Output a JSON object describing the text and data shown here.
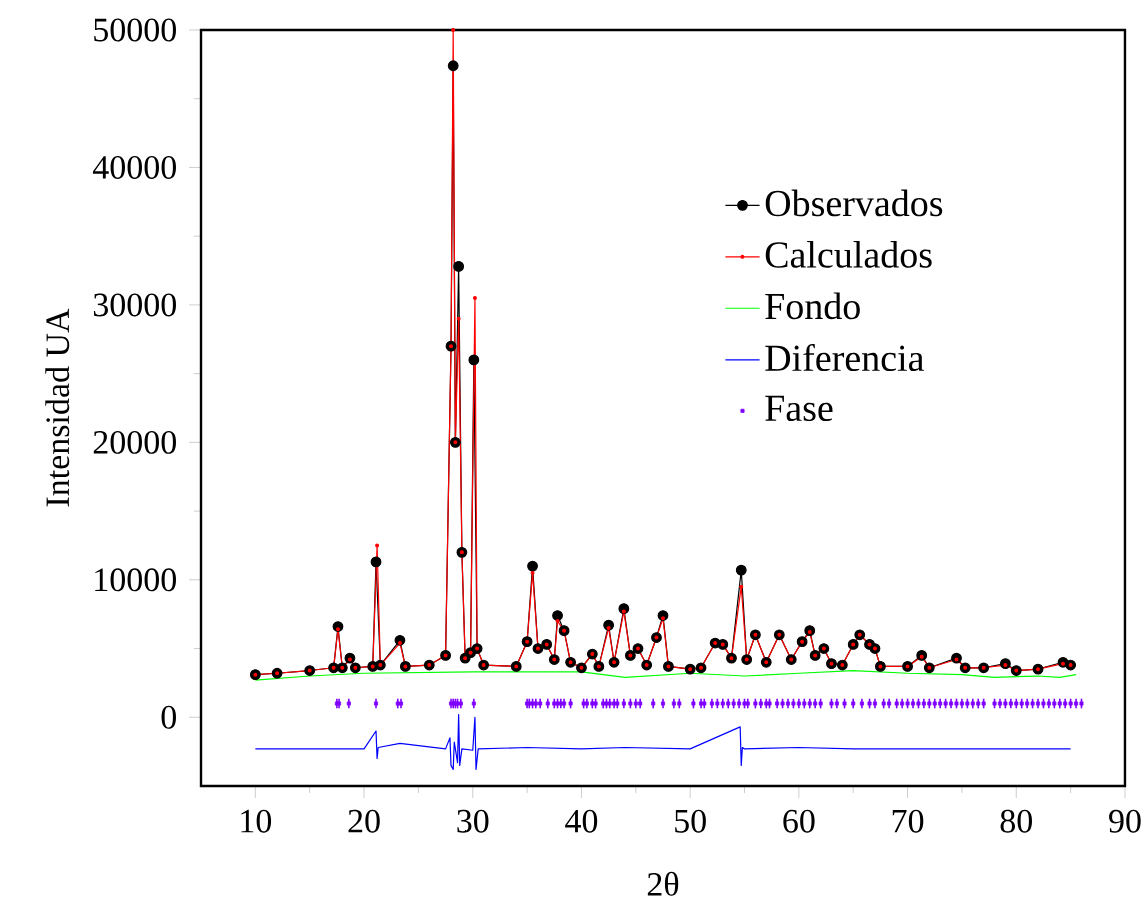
{
  "chart_data": {
    "type": "line",
    "xlabel": "2θ",
    "ylabel": "Intensidad UA",
    "xlim": [
      5,
      90
    ],
    "ylim": [
      -5000,
      50000
    ],
    "xticks": [
      10,
      20,
      30,
      40,
      50,
      60,
      70,
      80,
      90
    ],
    "yticks": [
      0,
      10000,
      20000,
      30000,
      40000,
      50000
    ],
    "legend": "top right",
    "series": [
      {
        "name": "Observados",
        "color": "#000000",
        "marker": "circle",
        "x": [
          10,
          12,
          15,
          17.2,
          17.6,
          18.0,
          18.7,
          19.2,
          20.8,
          21.1,
          21.5,
          23.3,
          23.8,
          26,
          27.5,
          28.0,
          28.2,
          28.4,
          28.7,
          29.0,
          29.3,
          29.8,
          30.1,
          30.4,
          31,
          34,
          35,
          35.5,
          36.0,
          36.8,
          37.5,
          37.8,
          38.4,
          39,
          40,
          41,
          41.6,
          42.5,
          43,
          43.9,
          44.5,
          45.2,
          46,
          46.9,
          47.5,
          48,
          50,
          51,
          52.3,
          53,
          53.8,
          54.7,
          55.2,
          56,
          57,
          58.2,
          59.3,
          60.3,
          61,
          61.5,
          62.3,
          63,
          64,
          65,
          65.6,
          66.5,
          67,
          67.5,
          70,
          71.3,
          72,
          74.5,
          75.3,
          77,
          79,
          80,
          82,
          84.3,
          85
        ],
        "values": [
          3100,
          3200,
          3400,
          3600,
          6600,
          3600,
          4300,
          3600,
          3700,
          11300,
          3800,
          5600,
          3700,
          3800,
          4500,
          27000,
          47400,
          20000,
          32800,
          12000,
          4300,
          4700,
          26000,
          5000,
          3800,
          3700,
          5500,
          11000,
          5000,
          5300,
          4200,
          7400,
          6300,
          4000,
          3600,
          4600,
          3700,
          6700,
          4000,
          7900,
          4500,
          5000,
          3800,
          5800,
          7400,
          3700,
          3500,
          3600,
          5400,
          5300,
          4300,
          10700,
          4200,
          6000,
          4000,
          6000,
          4200,
          5500,
          6300,
          4500,
          5000,
          3900,
          3800,
          5300,
          6000,
          5300,
          5000,
          3700,
          3700,
          4500,
          3600,
          4300,
          3600,
          3600,
          3900,
          3400,
          3500,
          4000,
          3800
        ]
      },
      {
        "name": "Calculados",
        "color": "#ff0000",
        "marker": "dot",
        "x": [
          10,
          12,
          15,
          17.2,
          17.6,
          18.0,
          18.7,
          19.2,
          20.8,
          21.2,
          21.5,
          23.3,
          23.8,
          26,
          27.5,
          28.0,
          28.2,
          28.4,
          28.7,
          29.0,
          29.3,
          29.8,
          30.2,
          30.4,
          31,
          34,
          35,
          35.5,
          36.0,
          36.8,
          37.5,
          37.8,
          38.4,
          39,
          40,
          41,
          41.6,
          42.5,
          43,
          43.9,
          44.5,
          45.2,
          46,
          46.9,
          47.5,
          48,
          50,
          51,
          52.3,
          53,
          53.8,
          54.7,
          55.2,
          56,
          57,
          58.2,
          59.3,
          60.3,
          61,
          61.5,
          62.3,
          63,
          64,
          65,
          65.6,
          66.5,
          67,
          67.5,
          70,
          71.3,
          72,
          74.5,
          75.3,
          77,
          79,
          80,
          82,
          84.3,
          85
        ],
        "values": [
          3100,
          3200,
          3400,
          3600,
          6400,
          3600,
          4200,
          3600,
          3700,
          12500,
          3800,
          5400,
          3700,
          3800,
          4500,
          27000,
          50000,
          20000,
          29000,
          12000,
          4300,
          4700,
          30500,
          5000,
          3800,
          3700,
          5500,
          10500,
          5000,
          5300,
          4200,
          7000,
          6300,
          4000,
          3600,
          4600,
          3700,
          6500,
          4000,
          7700,
          4500,
          5000,
          3800,
          5800,
          7200,
          3700,
          3500,
          3600,
          5400,
          5300,
          4300,
          9500,
          4200,
          6000,
          4000,
          6000,
          4200,
          5500,
          6200,
          4500,
          5000,
          3900,
          3800,
          5300,
          6000,
          5300,
          5000,
          3700,
          3700,
          4400,
          3600,
          4200,
          3600,
          3600,
          3800,
          3400,
          3500,
          3900,
          3800
        ]
      },
      {
        "name": "Fondo",
        "color": "#00ff00",
        "x": [
          10,
          15,
          20,
          30,
          40,
          44,
          50,
          55,
          60,
          65,
          70,
          75,
          78,
          82,
          84,
          85.5
        ],
        "values": [
          2700,
          3000,
          3200,
          3300,
          3300,
          2900,
          3200,
          3000,
          3200,
          3400,
          3200,
          3100,
          2900,
          3000,
          2900,
          3100
        ]
      },
      {
        "name": "Diferencia",
        "color": "#0000ff",
        "x": [
          10,
          15,
          20,
          21.1,
          21.2,
          21.3,
          23.3,
          27.5,
          27.9,
          28.0,
          28.2,
          28.3,
          28.6,
          28.7,
          28.8,
          29.0,
          30.0,
          30.2,
          30.3,
          30.5,
          35,
          40,
          44,
          50,
          54.6,
          54.7,
          54.8,
          55,
          60,
          65,
          70,
          75,
          80,
          85
        ],
        "values": [
          -2300,
          -2300,
          -2300,
          -1000,
          -3000,
          -2200,
          -1900,
          -2300,
          -1500,
          -3500,
          -3800,
          -1800,
          -3300,
          200,
          -3500,
          -2300,
          -2400,
          0,
          -3800,
          -2300,
          -2200,
          -2300,
          -2200,
          -2300,
          -700,
          -3500,
          -2200,
          -2300,
          -2200,
          -2300,
          -2300,
          -2300,
          -2300,
          -2300
        ]
      },
      {
        "name": "Fase",
        "color": "#8000ff",
        "type": "scatter",
        "marker": "square",
        "errors": [
          350,
          350,
          350,
          350,
          350,
          350,
          350,
          350,
          350,
          350,
          350,
          350,
          350,
          350,
          350,
          350,
          350,
          350,
          350,
          350,
          350,
          350,
          350,
          350,
          350,
          350,
          350,
          350,
          350,
          350,
          350,
          350,
          350,
          350,
          350,
          350,
          350,
          350,
          350,
          350,
          350,
          350,
          350,
          350,
          350,
          350,
          350,
          350,
          350,
          350,
          350,
          350,
          350,
          350,
          350,
          350,
          350,
          350,
          350,
          350,
          350,
          350,
          350,
          350,
          350,
          350,
          350,
          350,
          350,
          350,
          350,
          350,
          350,
          350,
          350,
          350,
          350,
          350,
          350,
          350,
          350,
          350,
          350,
          350,
          350,
          350,
          350,
          350,
          350,
          350,
          350,
          350,
          350,
          350,
          350,
          350,
          350,
          350,
          350,
          350,
          350,
          350,
          350,
          350,
          350,
          350,
          350
        ],
        "x": [
          17.5,
          17.7,
          18.6,
          21.1,
          23.1,
          23.4,
          28.0,
          28.2,
          28.4,
          28.6,
          28.9,
          30.1,
          35.0,
          35.2,
          35.5,
          35.8,
          36.2,
          36.9,
          37.5,
          37.8,
          38.1,
          38.4,
          39.0,
          40.2,
          40.5,
          41.0,
          41.3,
          42.0,
          42.3,
          42.6,
          43.0,
          43.3,
          43.9,
          44.5,
          45.0,
          45.4,
          46.6,
          47.5,
          48.5,
          49.0,
          50.3,
          51.0,
          51.3,
          52.0,
          52.5,
          53.0,
          53.5,
          54.0,
          54.5,
          55.0,
          55.3,
          56.0,
          56.5,
          57.0,
          57.3,
          58.0,
          58.5,
          59.0,
          59.5,
          60.0,
          60.5,
          61.0,
          61.5,
          62.0,
          63.0,
          63.5,
          64.2,
          65.0,
          65.8,
          66.5,
          67.0,
          67.8,
          68.3,
          69.0,
          69.5,
          70.0,
          70.5,
          71.0,
          71.5,
          72.0,
          72.5,
          73.0,
          73.5,
          74.0,
          74.5,
          75.0,
          75.5,
          76.0,
          76.5,
          77.0,
          78.0,
          78.5,
          79.0,
          79.5,
          80.0,
          80.5,
          81.0,
          81.5,
          82.0,
          82.5,
          83.0,
          83.5,
          84.0,
          84.5,
          85.0,
          85.5,
          86.0
        ],
        "values": [
          1000,
          1000,
          1000,
          1000,
          1000,
          1000,
          1000,
          1000,
          1000,
          1000,
          1000,
          1000,
          1000,
          1000,
          1000,
          1000,
          1000,
          1000,
          1000,
          1000,
          1000,
          1000,
          1000,
          1000,
          1000,
          1000,
          1000,
          1000,
          1000,
          1000,
          1000,
          1000,
          1000,
          1000,
          1000,
          1000,
          1000,
          1000,
          1000,
          1000,
          1000,
          1000,
          1000,
          1000,
          1000,
          1000,
          1000,
          1000,
          1000,
          1000,
          1000,
          1000,
          1000,
          1000,
          1000,
          1000,
          1000,
          1000,
          1000,
          1000,
          1000,
          1000,
          1000,
          1000,
          1000,
          1000,
          1000,
          1000,
          1000,
          1000,
          1000,
          1000,
          1000,
          1000,
          1000,
          1000,
          1000,
          1000,
          1000,
          1000,
          1000,
          1000,
          1000,
          1000,
          1000,
          1000,
          1000,
          1000,
          1000,
          1000,
          1000,
          1000,
          1000,
          1000,
          1000,
          1000,
          1000,
          1000,
          1000,
          1000,
          1000,
          1000,
          1000,
          1000,
          1000,
          1000,
          1000
        ]
      }
    ]
  }
}
